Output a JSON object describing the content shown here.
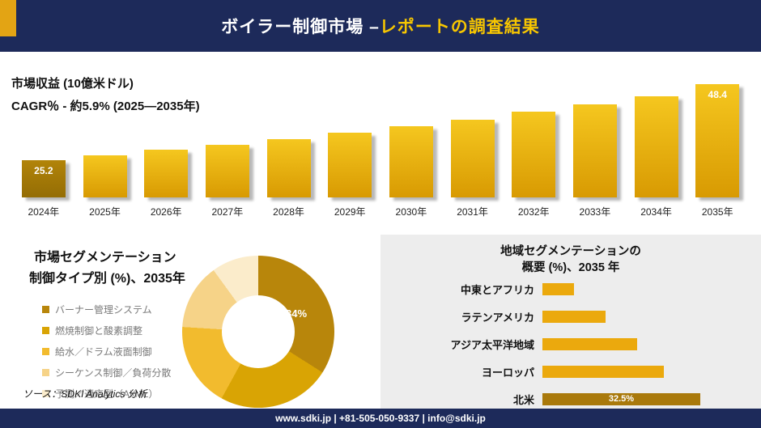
{
  "header": {
    "title_white": "ボイラー制御市場 –",
    "title_yellow": "レポートの調査結果"
  },
  "source_note": "ソース：SDKI Analytics 分析",
  "footer": {
    "text": "www.sdki.jp | +81-505-050-9337 | info@sdki.jp"
  },
  "styles": {
    "navy": "#1d2a5a",
    "gold_accent": "#e3a414",
    "title_yellow": "#f7c600",
    "bar_top": "#f5c71f",
    "bar_bottom": "#d89a02",
    "bar_first_top": "#b28409",
    "bar_first_bottom": "#946d05",
    "panel_gray": "#ededed"
  },
  "chart_data": [
    {
      "type": "bar",
      "title": "市場収益 (10億米ドル)",
      "subtitle": "CAGR％ - 約5.9% (2025―2035年)",
      "categories": [
        "2024年",
        "2025年",
        "2026年",
        "2027年",
        "2028年",
        "2029年",
        "2030年",
        "2031年",
        "2032年",
        "2033年",
        "2034年",
        "2035年"
      ],
      "values": [
        25.2,
        26.7,
        28.3,
        29.9,
        31.7,
        33.6,
        35.5,
        37.6,
        39.9,
        42.2,
        44.7,
        48.4
      ],
      "labeled_values": {
        "2024年": "25.2",
        "2035年": "48.4"
      },
      "legend_position": "none",
      "grid": false
    },
    {
      "type": "pie",
      "title_line1": "市場セグメンテーション",
      "title_line2": "制御タイプ別 (%)、2035年",
      "categories": [
        "バーナー管理システム",
        "燃焼制御と酸素調整",
        "給水／ドラム液面制御",
        "シーケンス制御／負荷分散",
        "予測／適応型（AI/ML）"
      ],
      "values": [
        34,
        24,
        18,
        14,
        10
      ],
      "colors": [
        "#b8860b",
        "#d9a404",
        "#f2bb2e",
        "#f6d388",
        "#fbeccb"
      ],
      "labeled_values": {
        "バーナー管理システム": "34%"
      },
      "legend_position": "left"
    },
    {
      "type": "bar",
      "orientation": "horizontal",
      "title_line1": "地域セグメンテーションの",
      "title_line2": "概要 (%)、2035 年",
      "categories": [
        "中東とアフリカ",
        "ラテンアメリカ",
        "アジア太平洋地域",
        "ヨーロッパ",
        "北米"
      ],
      "values": [
        6.5,
        13,
        19.5,
        25,
        32.5
      ],
      "colors": [
        "#eba90d",
        "#eba90d",
        "#eba90d",
        "#eba90d",
        "#a9790b"
      ],
      "labeled_values": {
        "北米": "32.5%"
      },
      "legend_position": "none",
      "grid": false
    }
  ]
}
